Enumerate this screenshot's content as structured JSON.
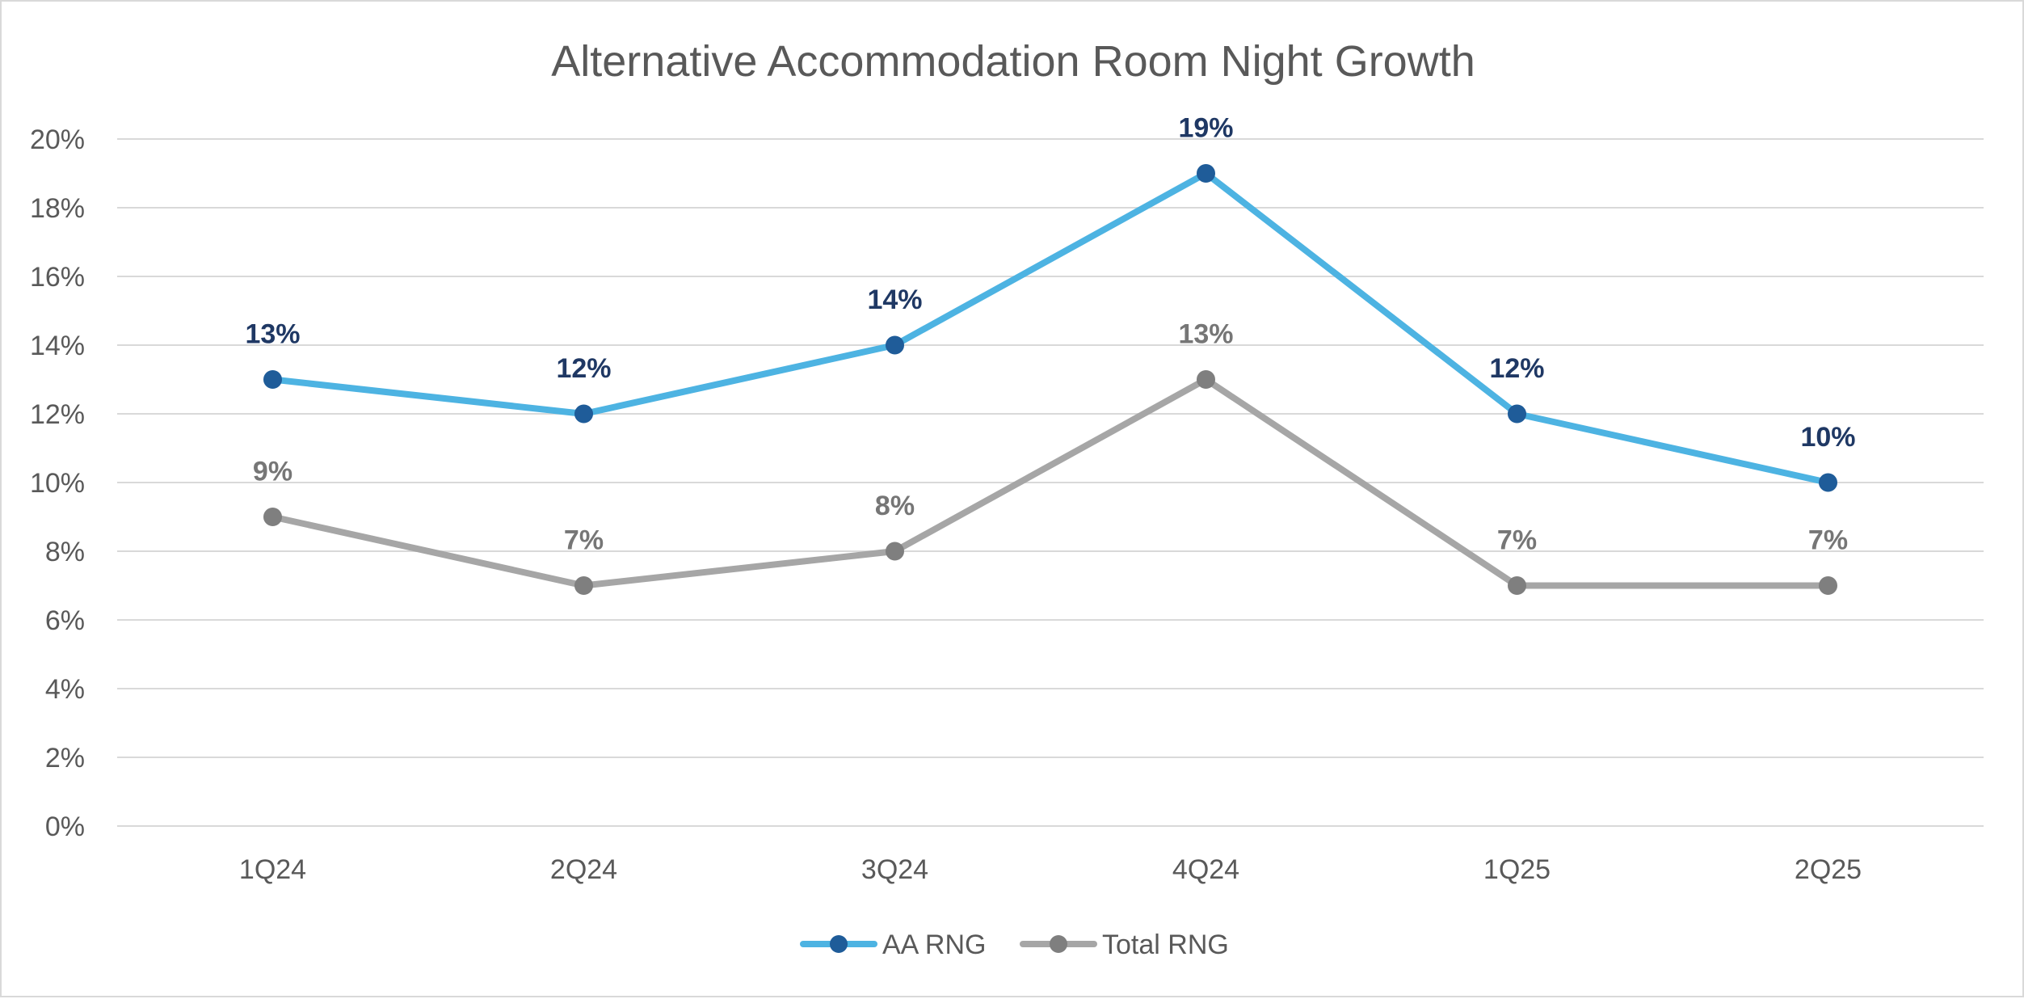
{
  "chart_data": {
    "type": "line",
    "title": "Alternative Accommodation Room Night Growth",
    "categories": [
      "1Q24",
      "2Q24",
      "3Q24",
      "4Q24",
      "1Q25",
      "2Q25"
    ],
    "ylim": [
      0,
      20
    ],
    "ytick_step": 2,
    "ytick_labels": [
      "0%",
      "2%",
      "4%",
      "6%",
      "8%",
      "10%",
      "12%",
      "14%",
      "16%",
      "18%",
      "20%"
    ],
    "grid": true,
    "legend_position": "bottom",
    "series": [
      {
        "name": "AA RNG",
        "values": [
          13,
          12,
          14,
          19,
          12,
          10
        ],
        "labels": [
          "13%",
          "12%",
          "14%",
          "19%",
          "12%",
          "10%"
        ],
        "line_color": "#4db3e2",
        "marker_color": "#1f5c99",
        "label_color": "#1f3864"
      },
      {
        "name": "Total RNG",
        "values": [
          9,
          7,
          8,
          13,
          7,
          7
        ],
        "labels": [
          "9%",
          "7%",
          "8%",
          "13%",
          "7%",
          "7%"
        ],
        "line_color": "#a6a6a6",
        "marker_color": "#7f7f7f",
        "label_color": "#767676"
      }
    ]
  }
}
